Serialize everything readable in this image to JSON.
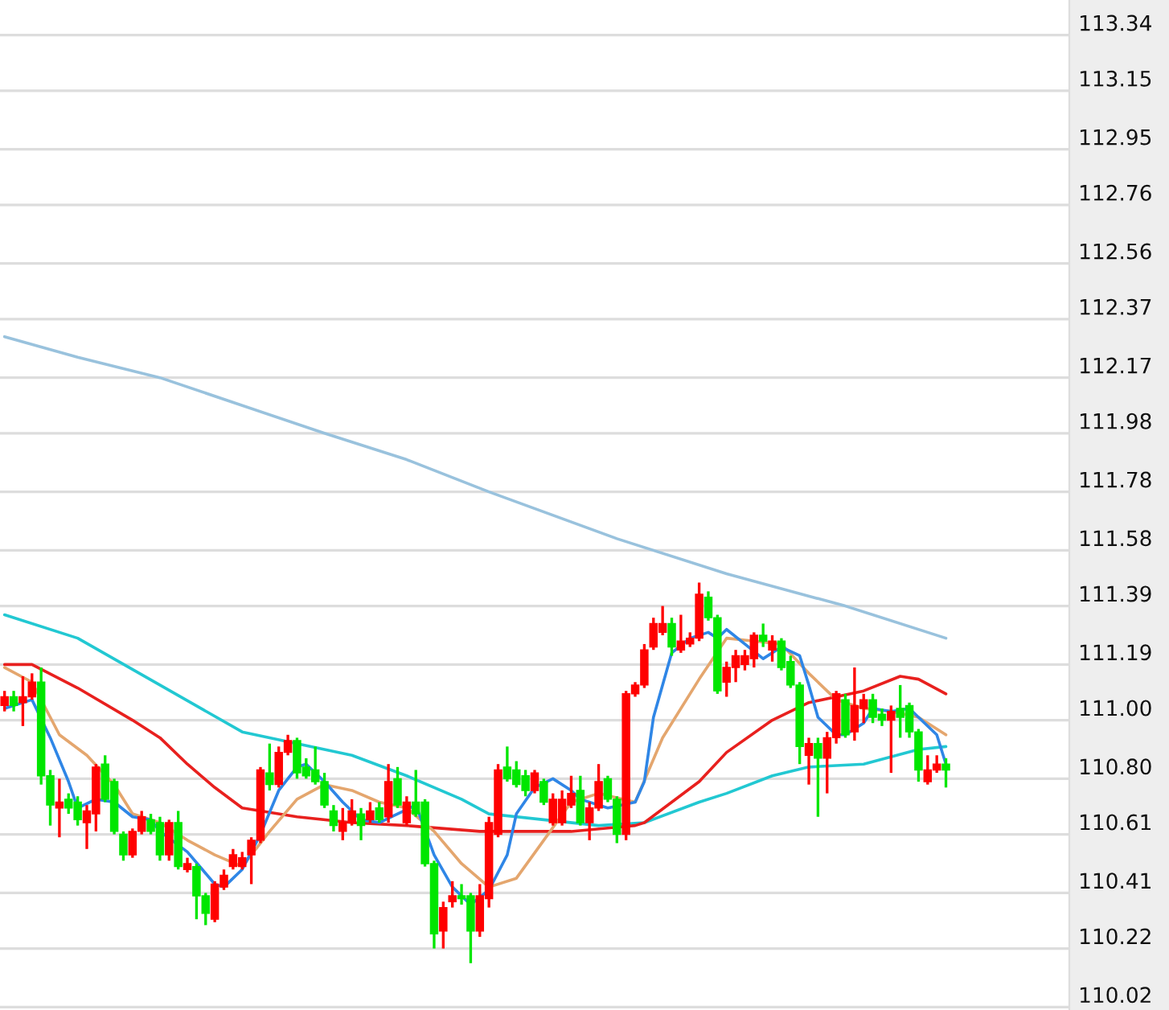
{
  "chart_data": {
    "type": "candlestick",
    "categories": [
      null,
      null,
      null,
      null,
      null,
      null,
      null,
      null,
      null,
      null,
      null,
      null,
      null,
      null,
      null,
      null,
      null,
      null,
      null,
      null,
      null,
      null,
      null,
      null,
      null,
      null,
      null,
      null,
      null,
      null,
      null,
      null,
      null,
      null,
      null,
      null,
      null,
      null,
      null,
      null,
      null,
      null,
      null,
      null,
      null,
      null,
      null,
      null,
      null,
      null,
      null,
      null,
      null,
      null,
      null,
      null,
      null,
      null,
      null,
      null,
      null,
      null,
      null,
      null,
      null,
      null,
      null,
      null,
      null,
      null,
      null,
      null,
      null,
      null,
      null,
      null,
      null,
      null,
      null,
      null,
      null,
      null,
      null,
      null,
      null,
      null,
      null,
      null,
      null,
      null,
      null,
      null,
      null,
      null,
      null,
      null,
      null,
      null,
      null,
      null,
      null,
      null,
      null,
      null
    ],
    "ylim": [
      110.01,
      113.46
    ],
    "yticks": [
      110.02,
      110.22,
      110.41,
      110.61,
      {
        "value": 110.8,
        "label": "110.80"
      },
      {
        "value": 111,
        "label": "111.00"
      },
      111.19,
      111.39,
      111.58,
      111.78,
      111.98,
      112.17,
      112.37,
      112.56,
      112.76,
      112.95,
      113.15,
      113.34
    ],
    "grid": "y",
    "tick_labels": "y",
    "series": [
      {
        "type": "line",
        "color": "#99c2dd",
        "values": [
          112.31,
          null,
          null,
          null,
          null,
          null,
          null,
          null,
          112.24,
          null,
          null,
          null,
          null,
          null,
          null,
          null,
          null,
          112.17,
          null,
          null,
          null,
          null,
          null,
          null,
          null,
          null,
          null,
          null,
          null,
          null,
          null,
          null,
          null,
          null,
          null,
          111.98,
          null,
          null,
          null,
          null,
          null,
          null,
          null,
          null,
          111.89,
          null,
          null,
          null,
          null,
          null,
          null,
          null,
          null,
          111.78,
          null,
          null,
          null,
          null,
          null,
          null,
          null,
          null,
          null,
          null,
          null,
          null,
          null,
          111.62,
          null,
          null,
          null,
          null,
          null,
          null,
          null,
          null,
          null,
          null,
          null,
          111.5,
          null,
          null,
          null,
          null,
          null,
          null,
          null,
          null,
          null,
          null,
          null,
          null,
          111.39,
          null,
          null,
          null,
          null,
          null,
          null,
          null,
          null,
          null,
          null,
          111.28
        ]
      },
      {
        "type": "line",
        "color": "#22c8d2",
        "values": [
          111.36,
          null,
          null,
          null,
          null,
          null,
          null,
          null,
          111.28,
          null,
          null,
          null,
          null,
          null,
          null,
          null,
          null,
          111.12,
          null,
          null,
          null,
          null,
          null,
          null,
          null,
          null,
          110.96,
          null,
          null,
          null,
          null,
          null,
          110.92,
          null,
          null,
          null,
          null,
          null,
          110.88,
          null,
          null,
          null,
          null,
          null,
          110.81,
          null,
          null,
          null,
          null,
          null,
          110.73,
          null,
          null,
          110.68,
          null,
          null,
          null,
          null,
          null,
          110.66,
          null,
          null,
          null,
          null,
          null,
          110.64,
          null,
          null,
          null,
          null,
          110.65,
          null,
          null,
          null,
          null,
          null,
          110.72,
          null,
          null,
          110.75,
          null,
          null,
          null,
          null,
          110.81,
          null,
          null,
          null,
          110.84,
          null,
          null,
          null,
          null,
          null,
          110.85,
          null,
          null,
          null,
          null,
          null,
          110.9,
          null,
          null,
          110.91
        ]
      },
      {
        "type": "line",
        "color": "#e8201e",
        "values": [
          111.19,
          null,
          null,
          111.19,
          null,
          null,
          null,
          null,
          111.11,
          null,
          null,
          null,
          null,
          null,
          111.0,
          null,
          null,
          110.94,
          null,
          null,
          110.85,
          null,
          null,
          110.77,
          null,
          null,
          110.7,
          null,
          null,
          null,
          null,
          null,
          110.67,
          null,
          null,
          null,
          null,
          null,
          110.65,
          null,
          null,
          null,
          null,
          null,
          110.64,
          null,
          null,
          null,
          null,
          null,
          null,
          null,
          110.62,
          null,
          null,
          null,
          null,
          null,
          null,
          null,
          null,
          null,
          110.62,
          null,
          null,
          null,
          null,
          null,
          null,
          110.64,
          110.65,
          null,
          null,
          null,
          null,
          null,
          110.79,
          null,
          null,
          110.89,
          null,
          null,
          null,
          null,
          111.0,
          null,
          null,
          null,
          111.06,
          null,
          null,
          null,
          null,
          null,
          111.1,
          null,
          null,
          null,
          111.15,
          null,
          111.14,
          null,
          null,
          111.09
        ]
      },
      {
        "type": "line",
        "color": "#e4a66e",
        "values": [
          111.18,
          null,
          null,
          111.13,
          null,
          null,
          110.95,
          null,
          null,
          110.88,
          null,
          null,
          110.78,
          null,
          110.68,
          null,
          null,
          110.65,
          null,
          null,
          110.59,
          null,
          null,
          110.54,
          null,
          null,
          110.5,
          null,
          null,
          110.62,
          null,
          null,
          110.73,
          null,
          null,
          110.78,
          null,
          null,
          110.76,
          null,
          null,
          110.72,
          null,
          null,
          110.7,
          null,
          null,
          110.62,
          null,
          null,
          110.51,
          null,
          null,
          110.43,
          null,
          null,
          110.46,
          null,
          null,
          110.59,
          null,
          null,
          110.72,
          null,
          null,
          110.75,
          null,
          null,
          null,
          110.72,
          null,
          null,
          110.94,
          null,
          null,
          null,
          111.14,
          null,
          null,
          111.28,
          null,
          null,
          111.27,
          null,
          null,
          111.26,
          null,
          null,
          111.16,
          null,
          null,
          111.07,
          null,
          null,
          111.04,
          null,
          null,
          111.03,
          null,
          null,
          111.01,
          null,
          null,
          110.95
        ]
      },
      {
        "type": "line",
        "color": "#2f86e6",
        "values": [
          111.04,
          null,
          null,
          111.07,
          null,
          110.94,
          null,
          110.79,
          110.7,
          null,
          110.73,
          null,
          110.72,
          null,
          110.67,
          null,
          110.66,
          110.62,
          null,
          null,
          110.55,
          null,
          null,
          110.44,
          110.43,
          null,
          110.49,
          null,
          110.61,
          null,
          110.76,
          null,
          110.84,
          110.85,
          null,
          110.79,
          null,
          110.72,
          null,
          110.66,
          null,
          110.65,
          null,
          110.68,
          null,
          110.71,
          null,
          110.54,
          null,
          110.43,
          null,
          110.37,
          null,
          110.42,
          null,
          110.54,
          110.68,
          null,
          110.77,
          null,
          110.8,
          null,
          110.76,
          110.73,
          null,
          null,
          110.7,
          null,
          null,
          110.72,
          110.79,
          111.01,
          null,
          111.23,
          null,
          111.28,
          null,
          111.3,
          111.28,
          111.31,
          null,
          111.26,
          null,
          111.21,
          null,
          111.25,
          null,
          111.22,
          111.12,
          111.01,
          null,
          110.95,
          110.95,
          null,
          110.99,
          111.04,
          null,
          111.03,
          null,
          111.04,
          111.01,
          null,
          110.95,
          110.85
        ]
      },
      {
        "colors": [
          "#ff0000",
          "#00e600",
          "#ff0000",
          "#ff0000",
          "#00e600",
          "#00e600",
          "#ff0000",
          "#00e600",
          "#00e600",
          "#ff0000",
          "#ff0000",
          "#00e600",
          "#00e600",
          "#00e600",
          "#ff0000",
          "#ff0000",
          "#00e600",
          "#00e600",
          "#ff0000",
          "#00e600",
          "#ff0000",
          "#00e600",
          "#00e600",
          "#ff0000",
          "#ff0000",
          "#ff0000",
          "#ff0000",
          "#ff0000",
          "#ff0000",
          "#00e600",
          "#ff0000",
          "#ff0000",
          "#00e600",
          "#00e600",
          "#00e600",
          "#00e600",
          "#00e600",
          "#ff0000",
          "#ff0000",
          "#00e600",
          "#ff0000",
          "#00e600",
          "#ff0000",
          "#00e600",
          "#ff0000",
          "#00e600",
          "#00e600",
          "#00e600",
          "#ff0000",
          "#ff0000",
          "#00e600",
          "#00e600",
          "#ff0000",
          "#ff0000",
          "#ff0000",
          "#00e600",
          "#00e600",
          "#00e600",
          "#ff0000",
          "#00e600",
          "#ff0000",
          "#ff0000",
          "#ff0000",
          "#00e600",
          "#ff0000",
          "#ff0000",
          "#00e600",
          "#00e600",
          "#ff0000",
          "#ff0000",
          "#ff0000",
          "#ff0000",
          "#ff0000",
          "#00e600",
          "#ff0000",
          "#ff0000",
          "#ff0000",
          "#00e600",
          "#00e600",
          "#ff0000",
          "#ff0000",
          "#ff0000",
          "#ff0000",
          "#00e600",
          "#ff0000",
          "#00e600",
          "#00e600",
          "#00e600",
          "#ff0000",
          "#00e600",
          "#ff0000",
          "#ff0000",
          "#00e600",
          "#ff0000",
          "#ff0000",
          "#00e600",
          "#00e600",
          "#ff0000",
          "#00e600",
          "#00e600",
          "#00e600",
          "#ff0000",
          "#ff0000",
          "#00e600"
        ],
        "ohlc": [
          [
            111.05,
            111.1,
            111.03,
            111.08
          ],
          [
            111.08,
            111.1,
            111.03,
            111.05
          ],
          [
            111.06,
            111.15,
            110.98,
            111.08
          ],
          [
            111.08,
            111.16,
            111.07,
            111.13
          ],
          [
            111.13,
            111.18,
            110.78,
            110.81
          ],
          [
            110.81,
            110.83,
            110.64,
            110.71
          ],
          [
            110.7,
            110.8,
            110.6,
            110.72
          ],
          [
            110.73,
            110.75,
            110.68,
            110.7
          ],
          [
            110.72,
            110.74,
            110.64,
            110.66
          ],
          [
            110.65,
            110.71,
            110.56,
            110.69
          ],
          [
            110.68,
            110.85,
            110.62,
            110.84
          ],
          [
            110.85,
            110.88,
            110.72,
            110.73
          ],
          [
            110.79,
            110.8,
            110.61,
            110.62
          ],
          [
            110.61,
            110.62,
            110.52,
            110.54
          ],
          [
            110.54,
            110.63,
            110.53,
            110.62
          ],
          [
            110.62,
            110.69,
            110.61,
            110.67
          ],
          [
            110.66,
            110.68,
            110.61,
            110.62
          ],
          [
            110.65,
            110.67,
            110.52,
            110.54
          ],
          [
            110.54,
            110.66,
            110.52,
            110.65
          ],
          [
            110.65,
            110.69,
            110.49,
            110.5
          ],
          [
            110.49,
            110.53,
            110.48,
            110.51
          ],
          [
            110.5,
            110.51,
            110.32,
            110.4
          ],
          [
            110.4,
            110.41,
            110.3,
            110.34
          ],
          [
            110.32,
            110.45,
            110.31,
            110.44
          ],
          [
            110.43,
            110.49,
            110.42,
            110.47
          ],
          [
            110.5,
            110.56,
            110.49,
            110.54
          ],
          [
            110.5,
            110.55,
            110.49,
            110.53
          ],
          [
            110.54,
            110.6,
            110.44,
            110.59
          ],
          [
            110.59,
            110.84,
            110.58,
            110.83
          ],
          [
            110.82,
            110.92,
            110.76,
            110.78
          ],
          [
            110.78,
            110.91,
            110.77,
            110.89
          ],
          [
            110.89,
            110.95,
            110.88,
            110.93
          ],
          [
            110.93,
            110.94,
            110.8,
            110.82
          ],
          [
            110.84,
            110.87,
            110.8,
            110.81
          ],
          [
            110.83,
            110.91,
            110.78,
            110.79
          ],
          [
            110.79,
            110.82,
            110.7,
            110.71
          ],
          [
            110.69,
            110.71,
            110.62,
            110.64
          ],
          [
            110.62,
            110.7,
            110.59,
            110.65
          ],
          [
            110.65,
            110.73,
            110.64,
            110.69
          ],
          [
            110.68,
            110.7,
            110.59,
            110.64
          ],
          [
            110.66,
            110.72,
            110.65,
            110.69
          ],
          [
            110.7,
            110.72,
            110.65,
            110.66
          ],
          [
            110.67,
            110.85,
            110.65,
            110.79
          ],
          [
            110.8,
            110.84,
            110.7,
            110.71
          ],
          [
            110.65,
            110.74,
            110.64,
            110.72
          ],
          [
            110.72,
            110.83,
            110.67,
            110.68
          ],
          [
            110.72,
            110.73,
            110.5,
            110.51
          ],
          [
            110.51,
            110.52,
            110.22,
            110.27
          ],
          [
            110.28,
            110.38,
            110.22,
            110.36
          ],
          [
            110.38,
            110.45,
            110.36,
            110.4
          ],
          [
            110.4,
            110.44,
            110.37,
            110.39
          ],
          [
            110.4,
            110.41,
            110.17,
            110.28
          ],
          [
            110.28,
            110.44,
            110.26,
            110.4
          ],
          [
            110.39,
            110.67,
            110.36,
            110.65
          ],
          [
            110.61,
            110.85,
            110.6,
            110.83
          ],
          [
            110.84,
            110.91,
            110.79,
            110.8
          ],
          [
            110.83,
            110.86,
            110.77,
            110.78
          ],
          [
            110.81,
            110.83,
            110.74,
            110.76
          ],
          [
            110.76,
            110.83,
            110.75,
            110.82
          ],
          [
            110.79,
            110.8,
            110.71,
            110.72
          ],
          [
            110.65,
            110.75,
            110.64,
            110.73
          ],
          [
            110.65,
            110.76,
            110.64,
            110.73
          ],
          [
            110.71,
            110.81,
            110.7,
            110.75
          ],
          [
            110.76,
            110.81,
            110.64,
            110.65
          ],
          [
            110.65,
            110.72,
            110.59,
            110.7
          ],
          [
            110.7,
            110.85,
            110.69,
            110.79
          ],
          [
            110.8,
            110.81,
            110.72,
            110.73
          ],
          [
            110.73,
            110.74,
            110.58,
            110.61
          ],
          [
            110.61,
            111.1,
            110.59,
            111.09
          ],
          [
            111.09,
            111.13,
            111.08,
            111.12
          ],
          [
            111.12,
            111.26,
            111.11,
            111.24
          ],
          [
            111.25,
            111.35,
            111.24,
            111.33
          ],
          [
            111.3,
            111.39,
            111.29,
            111.33
          ],
          [
            111.33,
            111.35,
            111.22,
            111.25
          ],
          [
            111.24,
            111.36,
            111.23,
            111.27
          ],
          [
            111.26,
            111.3,
            111.25,
            111.28
          ],
          [
            111.28,
            111.47,
            111.27,
            111.43
          ],
          [
            111.42,
            111.44,
            111.34,
            111.35
          ],
          [
            111.35,
            111.36,
            111.09,
            111.1
          ],
          [
            111.13,
            111.2,
            111.08,
            111.18
          ],
          [
            111.18,
            111.24,
            111.13,
            111.22
          ],
          [
            111.19,
            111.24,
            111.17,
            111.22
          ],
          [
            111.21,
            111.3,
            111.18,
            111.29
          ],
          [
            111.29,
            111.33,
            111.25,
            111.27
          ],
          [
            111.24,
            111.29,
            111.2,
            111.27
          ],
          [
            111.27,
            111.28,
            111.17,
            111.18
          ],
          [
            111.2,
            111.22,
            111.11,
            111.12
          ],
          [
            111.12,
            111.13,
            110.85,
            110.91
          ],
          [
            110.88,
            110.94,
            110.78,
            110.92
          ],
          [
            110.92,
            110.94,
            110.67,
            110.87
          ],
          [
            110.87,
            110.96,
            110.75,
            110.94
          ],
          [
            110.94,
            111.1,
            110.92,
            111.09
          ],
          [
            111.07,
            111.09,
            110.94,
            110.95
          ],
          [
            110.96,
            111.18,
            110.93,
            111.05
          ],
          [
            111.04,
            111.09,
            110.99,
            111.07
          ],
          [
            111.07,
            111.09,
            110.99,
            111.01
          ],
          [
            111.02,
            111.04,
            110.98,
            111.0
          ],
          [
            111.0,
            111.05,
            110.82,
            111.03
          ],
          [
            111.04,
            111.12,
            110.94,
            111.01
          ],
          [
            111.05,
            111.06,
            110.94,
            110.96
          ],
          [
            110.96,
            110.97,
            110.79,
            110.83
          ],
          [
            110.79,
            110.88,
            110.78,
            110.83
          ],
          [
            110.83,
            110.88,
            110.82,
            110.85
          ],
          [
            110.85,
            110.87,
            110.77,
            110.83
          ]
        ]
      }
    ]
  }
}
